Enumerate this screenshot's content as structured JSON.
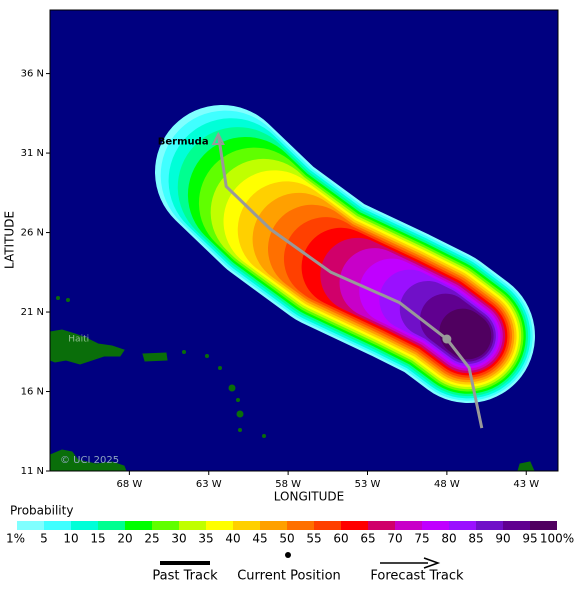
{
  "map": {
    "x_label": "LONGITUDE",
    "y_label": "LATITUDE",
    "xlim": [
      -73,
      -41
    ],
    "ylim": [
      11,
      40
    ],
    "xticks": [
      {
        "value": -68,
        "label": "68 W"
      },
      {
        "value": -63,
        "label": "63 W"
      },
      {
        "value": -58,
        "label": "58 W"
      },
      {
        "value": -53,
        "label": "53 W"
      },
      {
        "value": -48,
        "label": "48 W"
      },
      {
        "value": -43,
        "label": "43 W"
      }
    ],
    "yticks": [
      {
        "value": 11,
        "label": "11 N"
      },
      {
        "value": 16,
        "label": "16 N"
      },
      {
        "value": 21,
        "label": "21 N"
      },
      {
        "value": 26,
        "label": "26 N"
      },
      {
        "value": 31,
        "label": "31 N"
      },
      {
        "value": 36,
        "label": "36 N"
      }
    ],
    "past_track": {
      "lon": [
        -45.8,
        -46.6,
        -48.0
      ],
      "lat": [
        13.7,
        17.5,
        19.3
      ]
    },
    "current_position": {
      "lon": -48.0,
      "lat": 19.3
    },
    "forecast_track": {
      "lon": [
        -48.0,
        -51.0,
        -55.3,
        -59.1,
        -61.9,
        -62.4
      ],
      "lat": [
        19.3,
        21.6,
        23.5,
        26.2,
        28.9,
        32.2
      ]
    },
    "places": [
      {
        "name": "Bermuda",
        "lon": -64.8,
        "lat": 32.3
      },
      {
        "name": "Haiti",
        "lon": -72.1,
        "lat": 19.3
      }
    ],
    "watermark": "© UCI 2025",
    "colorbar": {
      "title": "Probability",
      "colors": [
        "#80ffff",
        "#40ffff",
        "#00ffd8",
        "#00ff90",
        "#00ff00",
        "#60ff00",
        "#c0ff00",
        "#ffff00",
        "#ffd000",
        "#ffa000",
        "#ff7000",
        "#ff4000",
        "#ff0000",
        "#d0006a",
        "#c800c8",
        "#c000ff",
        "#9a10ff",
        "#7010c8",
        "#600090",
        "#500060"
      ],
      "tick_labels": [
        "1%",
        "5",
        "10",
        "15",
        "20",
        "25",
        "30",
        "35",
        "40",
        "45",
        "50",
        "55",
        "60",
        "65",
        "70",
        "75",
        "80",
        "85",
        "90",
        "95",
        "100%"
      ]
    },
    "legend": [
      "Past Track",
      "Current Position",
      "Forecast Track"
    ]
  }
}
